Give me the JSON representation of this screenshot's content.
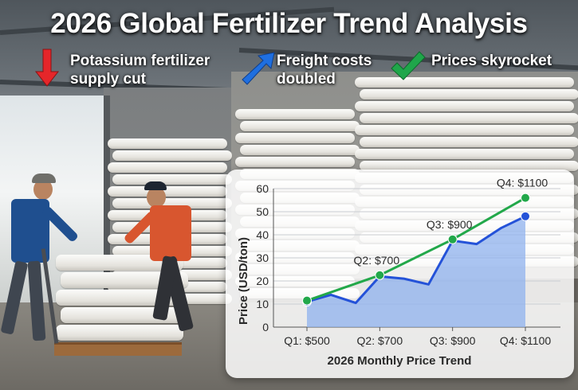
{
  "title": "2026 Global Fertilizer Trend Analysis",
  "callouts": [
    {
      "text_line1": "Potassium fertilizer",
      "text_line2": "supply cut",
      "icon": "arrow-down-icon",
      "color": "#e5262a"
    },
    {
      "text_line1": "Freight costs",
      "text_line2": "doubled",
      "icon": "arrow-up-right-icon",
      "color": "#1f6fe0"
    },
    {
      "text_line1": "Prices skyrocket",
      "text_line2": "",
      "icon": "check-icon",
      "color": "#1fa64a"
    }
  ],
  "chart_data": {
    "type": "line",
    "xlabel": "2026 Monthly Price Trend",
    "ylabel": "Price (USD/ton)",
    "ylim": [
      0,
      60
    ],
    "yticks": [
      0,
      10,
      20,
      30,
      40,
      50,
      60
    ],
    "categories": [
      "Q1: $500",
      "Q2: $700",
      "Q3: $900",
      "Q4: $1100"
    ],
    "grid": true,
    "series": [
      {
        "name": "",
        "style": "area-line",
        "color": "#2452d8",
        "fill": "#8fb1ee",
        "x": [
          0,
          0.33,
          0.67,
          1.0,
          1.33,
          1.67,
          2.0,
          2.33,
          2.67,
          3.0
        ],
        "y": [
          11,
          14,
          10.5,
          22,
          21,
          18.5,
          37.5,
          36,
          43,
          48
        ]
      },
      {
        "name": "",
        "style": "line-markers",
        "color": "#22a84a",
        "x": [
          0,
          1,
          2,
          3
        ],
        "y": [
          11.5,
          22.5,
          38,
          56
        ],
        "labels": [
          "",
          "Q2: $700",
          "Q3: $900",
          "Q4: $1100"
        ]
      }
    ]
  }
}
